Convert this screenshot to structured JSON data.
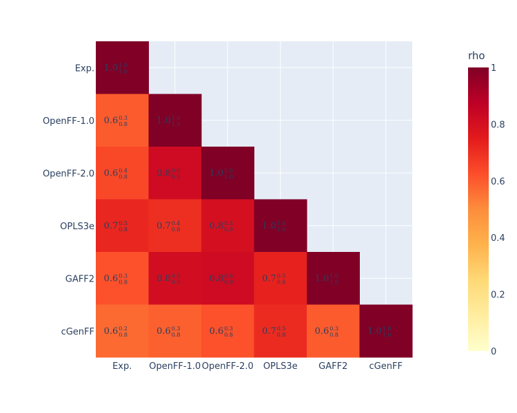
{
  "chart_data": {
    "type": "heatmap",
    "title": "",
    "x_categories": [
      "Exp.",
      "OpenFF-1.0",
      "OpenFF-2.0",
      "OPLS3e",
      "GAFF2",
      "cGenFF"
    ],
    "y_categories": [
      "Exp.",
      "OpenFF-1.0",
      "OpenFF-2.0",
      "OPLS3e",
      "GAFF2",
      "cGenFF"
    ],
    "cells": [
      {
        "row": 0,
        "col": 0,
        "value": 1.0,
        "label": "1.0",
        "sup": "1.0",
        "sub": "1.0"
      },
      {
        "row": 1,
        "col": 0,
        "value": 0.6,
        "label": "0.6",
        "sup": "0.3",
        "sub": "0.8"
      },
      {
        "row": 1,
        "col": 1,
        "value": 1.0,
        "label": "1.0",
        "sup": "1.0",
        "sub": "1.0"
      },
      {
        "row": 2,
        "col": 0,
        "value": 0.64,
        "label": "0.6",
        "sup": "0.4",
        "sub": "0.8"
      },
      {
        "row": 2,
        "col": 1,
        "value": 0.82,
        "label": "0.8",
        "sup": "0.6",
        "sub": "0.9"
      },
      {
        "row": 2,
        "col": 2,
        "value": 1.0,
        "label": "1.0",
        "sup": "1.0",
        "sub": "1.0"
      },
      {
        "row": 3,
        "col": 0,
        "value": 0.72,
        "label": "0.7",
        "sup": "0.5",
        "sub": "0.8"
      },
      {
        "row": 3,
        "col": 1,
        "value": 0.7,
        "label": "0.7",
        "sup": "0.4",
        "sub": "0.8"
      },
      {
        "row": 3,
        "col": 2,
        "value": 0.8,
        "label": "0.8",
        "sup": "0.5",
        "sub": "0.9"
      },
      {
        "row": 3,
        "col": 3,
        "value": 1.0,
        "label": "1.0",
        "sup": "1.0",
        "sub": "1.0"
      },
      {
        "row": 4,
        "col": 0,
        "value": 0.62,
        "label": "0.6",
        "sup": "0.3",
        "sub": "0.8"
      },
      {
        "row": 4,
        "col": 1,
        "value": 0.81,
        "label": "0.8",
        "sup": "0.5",
        "sub": "0.9"
      },
      {
        "row": 4,
        "col": 2,
        "value": 0.82,
        "label": "0.8",
        "sup": "0.6",
        "sub": "0.9"
      },
      {
        "row": 4,
        "col": 3,
        "value": 0.73,
        "label": "0.7",
        "sup": "0.5",
        "sub": "0.8"
      },
      {
        "row": 4,
        "col": 4,
        "value": 1.0,
        "label": "1.0",
        "sup": "1.0",
        "sub": "1.0"
      },
      {
        "row": 5,
        "col": 0,
        "value": 0.57,
        "label": "0.6",
        "sup": "0.2",
        "sub": "0.8"
      },
      {
        "row": 5,
        "col": 1,
        "value": 0.59,
        "label": "0.6",
        "sup": "0.3",
        "sub": "0.8"
      },
      {
        "row": 5,
        "col": 2,
        "value": 0.62,
        "label": "0.6",
        "sup": "0.3",
        "sub": "0.8"
      },
      {
        "row": 5,
        "col": 3,
        "value": 0.71,
        "label": "0.7",
        "sup": "0.5",
        "sub": "0.8"
      },
      {
        "row": 5,
        "col": 4,
        "value": 0.6,
        "label": "0.6",
        "sup": "0.3",
        "sub": "0.8"
      },
      {
        "row": 5,
        "col": 5,
        "value": 1.0,
        "label": "1.0",
        "sup": "1.0",
        "sub": "1.0"
      }
    ],
    "colorbar": {
      "title": "rho",
      "range": [
        0,
        1
      ],
      "ticks": [
        "0",
        "0.2",
        "0.4",
        "0.6",
        "0.8",
        "1"
      ]
    },
    "colorscale": [
      "#ffffcc",
      "#ffeda0",
      "#fed976",
      "#feb24c",
      "#fd8d3c",
      "#fc4e2a",
      "#e31a1c",
      "#bd0026",
      "#800026"
    ],
    "plot_background": "#e5ecf6",
    "grid": true
  }
}
